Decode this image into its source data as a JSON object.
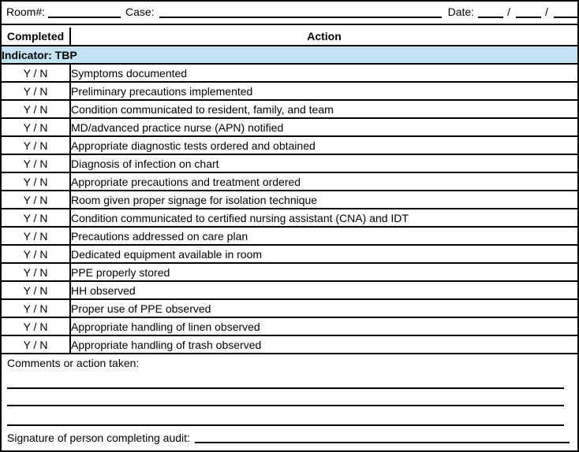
{
  "form_header": {
    "room_label": "Room#:",
    "case_label": "Case:",
    "date_label": "Date:",
    "date_separator": "/"
  },
  "table": {
    "columns": {
      "completed": "Completed",
      "action": "Action"
    },
    "indicator": "Indicator: TBP",
    "yn_label": "Y / N",
    "rows": [
      "Symptoms documented",
      "Preliminary precautions implemented",
      "Condition communicated to resident, family, and team",
      "MD/advanced practice nurse (APN) notified",
      "Appropriate diagnostic tests ordered and obtained",
      "Diagnosis of infection on chart",
      "Appropriate precautions and treatment ordered",
      "Room given proper signage for isolation technique",
      "Condition communicated to certified nursing assistant (CNA) and IDT",
      "Precautions addressed on care plan",
      "Dedicated equipment available in room",
      "PPE properly stored",
      "HH observed",
      "Proper use of PPE observed",
      "Appropriate handling of linen observed",
      "Appropriate handling of trash observed"
    ]
  },
  "footer": {
    "comments_label": "Comments or action taken:",
    "signature_label": "Signature of person completing audit:"
  },
  "colors": {
    "indicator_bg": "#C2E4F4",
    "border": "#000000"
  }
}
